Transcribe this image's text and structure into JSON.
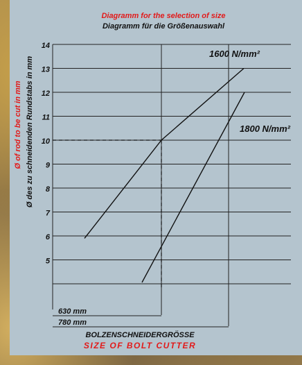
{
  "chart_data": {
    "type": "line",
    "title": "Diagramm for the selection of size",
    "subtitle": "Diagramm für die Größenauswahl",
    "ylabel": "Ø of rod to be cut in mm",
    "ylabel_de": "Ø des zu schneidenden Rundstabs in mm",
    "xlabel": "BOLZENSCHNEIDERGRÖSSE",
    "xlabel_en": "SIZE OF BOLT CUTTER",
    "ylim": [
      4,
      14
    ],
    "yticks": [
      "14",
      "13",
      "12",
      "11",
      "10",
      "9",
      "8",
      "7",
      "6",
      "5"
    ],
    "grid": true,
    "sizes": [
      "630 mm",
      "780 mm"
    ],
    "series": [
      {
        "name": "1600 N/mm²",
        "points": [
          [
            6,
            5.9
          ],
          [
            10,
            10
          ],
          [
            13,
            13
          ]
        ]
      },
      {
        "name": "1800 N/mm²",
        "points": [
          [
            4,
            4
          ],
          [
            12,
            12
          ]
        ]
      }
    ],
    "guide": {
      "y": 10,
      "size": "630 mm"
    }
  },
  "colors": {
    "red": "#e21a1a",
    "panel": "#b4c4ce",
    "ink": "#111111"
  }
}
